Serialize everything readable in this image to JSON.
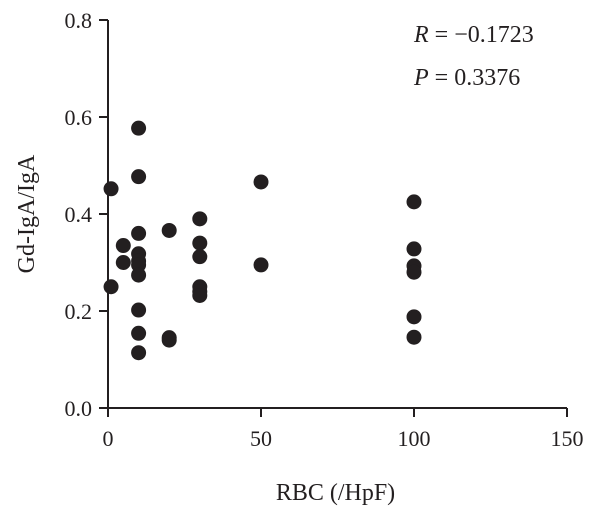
{
  "chart_data": {
    "type": "scatter",
    "xlabel": "RBC (/HpF)",
    "ylabel": "Gd-IgA/IgA",
    "xlim": [
      0,
      150
    ],
    "ylim": [
      0,
      0.8
    ],
    "xticks": [
      "0",
      "50",
      "100",
      "150"
    ],
    "yticks": [
      "0.0",
      "0.2",
      "0.4",
      "0.6",
      "0.8"
    ],
    "grid": false,
    "legend": "none",
    "marker_color": "#231f20",
    "annotations": {
      "r_var": "R",
      "r_value": " = −0.1723",
      "p_var": "P",
      "p_value": " = 0.3376"
    },
    "points": [
      {
        "x": 1,
        "y": 0.452
      },
      {
        "x": 1,
        "y": 0.25
      },
      {
        "x": 5,
        "y": 0.335
      },
      {
        "x": 5,
        "y": 0.3
      },
      {
        "x": 10,
        "y": 0.577
      },
      {
        "x": 10,
        "y": 0.477
      },
      {
        "x": 10,
        "y": 0.36
      },
      {
        "x": 10,
        "y": 0.318
      },
      {
        "x": 10,
        "y": 0.303
      },
      {
        "x": 10,
        "y": 0.295
      },
      {
        "x": 10,
        "y": 0.274
      },
      {
        "x": 10,
        "y": 0.202
      },
      {
        "x": 10,
        "y": 0.154
      },
      {
        "x": 10,
        "y": 0.114
      },
      {
        "x": 20,
        "y": 0.366
      },
      {
        "x": 20,
        "y": 0.145
      },
      {
        "x": 20,
        "y": 0.14
      },
      {
        "x": 30,
        "y": 0.39
      },
      {
        "x": 30,
        "y": 0.34
      },
      {
        "x": 30,
        "y": 0.312
      },
      {
        "x": 30,
        "y": 0.25
      },
      {
        "x": 30,
        "y": 0.24
      },
      {
        "x": 30,
        "y": 0.232
      },
      {
        "x": 50,
        "y": 0.466
      },
      {
        "x": 50,
        "y": 0.295
      },
      {
        "x": 100,
        "y": 0.425
      },
      {
        "x": 100,
        "y": 0.328
      },
      {
        "x": 100,
        "y": 0.293
      },
      {
        "x": 100,
        "y": 0.28
      },
      {
        "x": 100,
        "y": 0.188
      },
      {
        "x": 100,
        "y": 0.146
      }
    ]
  }
}
